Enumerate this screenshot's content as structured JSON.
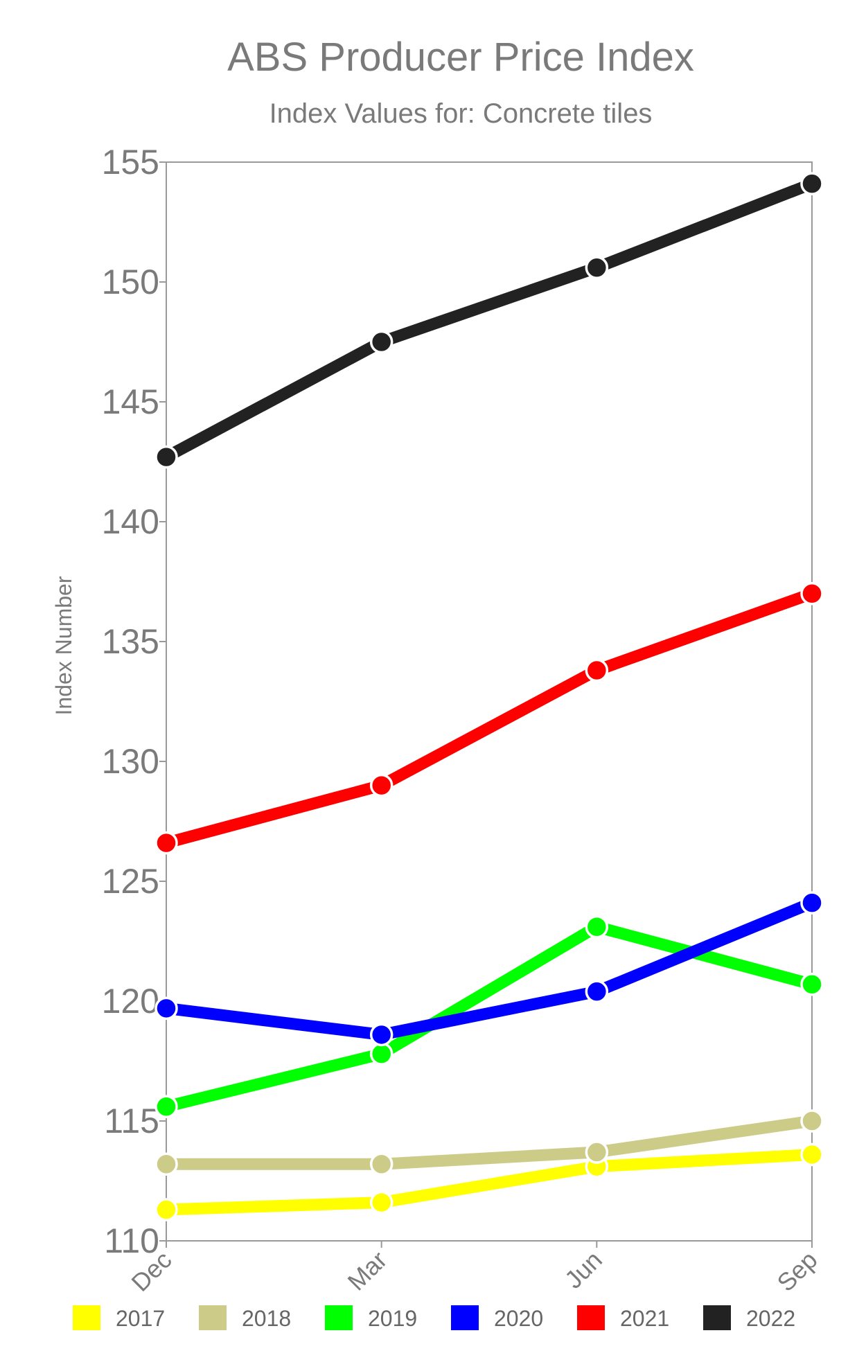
{
  "chart_data": {
    "type": "line",
    "title": "ABS Producer Price Index",
    "subtitle": "Index Values for: Concrete tiles",
    "ylabel": "Index Number",
    "xlabel": "",
    "categories": [
      "Dec",
      "Mar",
      "Jun",
      "Sep"
    ],
    "ylim": [
      110,
      155
    ],
    "yticks": [
      110,
      115,
      120,
      125,
      130,
      135,
      140,
      145,
      150,
      155
    ],
    "grid": false,
    "legend_position": "bottom",
    "series": [
      {
        "name": "2017",
        "color": "#ffff00",
        "values": [
          111.3,
          111.6,
          113.1,
          113.6
        ]
      },
      {
        "name": "2018",
        "color": "#cccc88",
        "values": [
          113.2,
          113.2,
          113.7,
          115.0
        ]
      },
      {
        "name": "2019",
        "color": "#00ff00",
        "values": [
          115.6,
          117.8,
          123.1,
          120.7
        ]
      },
      {
        "name": "2020",
        "color": "#0000ff",
        "values": [
          119.7,
          118.6,
          120.4,
          124.1
        ]
      },
      {
        "name": "2021",
        "color": "#ff0000",
        "values": [
          126.6,
          129.0,
          133.8,
          137.0
        ]
      },
      {
        "name": "2022",
        "color": "#222222",
        "values": [
          142.7,
          147.5,
          150.6,
          154.1
        ]
      }
    ]
  }
}
